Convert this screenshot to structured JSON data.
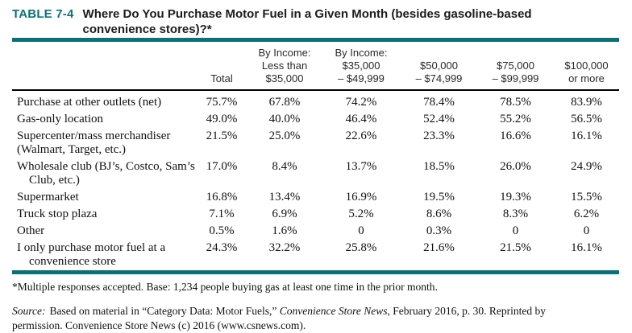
{
  "colors": {
    "accent_teal": "#0b7178"
  },
  "header": {
    "table_label": "TABLE 7-4",
    "title_line1": "Where Do You Purchase Motor Fuel in a Given Month (besides gasoline-based",
    "title_line2": "convenience stores)?*"
  },
  "table": {
    "columns": [
      {
        "lines": [
          "Total"
        ]
      },
      {
        "lines": [
          "By Income:",
          "Less than",
          "$35,000"
        ]
      },
      {
        "lines": [
          "By Income:",
          "$35,000",
          "– $49,999"
        ]
      },
      {
        "lines": [
          "$50,000",
          "– $74,999"
        ]
      },
      {
        "lines": [
          "$75,000",
          "– $99,999"
        ]
      },
      {
        "lines": [
          "$100,000",
          "or more"
        ]
      }
    ],
    "rows": [
      {
        "label": "Purchase at other outlets (net)",
        "values": [
          "75.7%",
          "67.8%",
          "74.2%",
          "78.4%",
          "78.5%",
          "83.9%"
        ]
      },
      {
        "label": "Gas-only location",
        "values": [
          "49.0%",
          "40.0%",
          "46.4%",
          "52.4%",
          "55.2%",
          "56.5%"
        ]
      },
      {
        "label": "Supercenter/mass merchandiser",
        "label_line2": "(Walmart, Target, etc.)",
        "values": [
          "21.5%",
          "25.0%",
          "22.6%",
          "23.3%",
          "16.6%",
          "16.1%"
        ]
      },
      {
        "label": "Wholesale club (BJ’s, Costco, Sam’s",
        "label_line2": "Club, etc.)",
        "values": [
          "17.0%",
          "8.4%",
          "13.7%",
          "18.5%",
          "26.0%",
          "24.9%"
        ]
      },
      {
        "label": "Supermarket",
        "values": [
          "16.8%",
          "13.4%",
          "16.9%",
          "19.5%",
          "19.3%",
          "15.5%"
        ]
      },
      {
        "label": "Truck stop plaza",
        "values": [
          "7.1%",
          "6.9%",
          "5.2%",
          "8.6%",
          "8.3%",
          "6.2%"
        ]
      },
      {
        "label": "Other",
        "values": [
          "0.5%",
          "1.6%",
          "0",
          "0.3%",
          "0",
          "0"
        ]
      },
      {
        "label": "I only purchase motor fuel at a",
        "label_line2": "convenience store",
        "values": [
          "24.3%",
          "32.2%",
          "25.8%",
          "21.6%",
          "21.5%",
          "16.1%"
        ]
      }
    ]
  },
  "footnote": "*Multiple responses accepted. Base: 1,234 people buying gas at least one time in the prior month.",
  "source": {
    "label": "Source:",
    "text1": "Based on material in “Category Data: Motor Fuels,” ",
    "italic_title": "Convenience Store News",
    "text2": ", February 2016, p. 30. Reprinted by",
    "text3": "permission. Convenience Store News (c) 2016 (www.csnews.com)."
  }
}
